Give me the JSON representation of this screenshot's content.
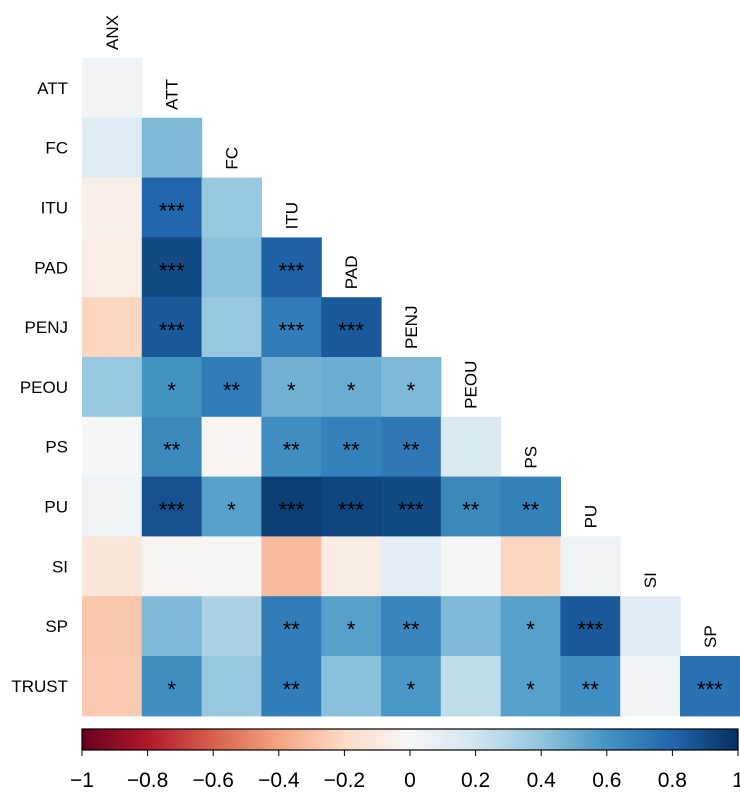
{
  "chart_data": {
    "type": "heatmap",
    "row_labels": [
      "ATT",
      "FC",
      "ITU",
      "PAD",
      "PENJ",
      "PEOU",
      "PS",
      "PU",
      "SI",
      "SP",
      "TRUST"
    ],
    "col_labels": [
      "ANX",
      "ATT",
      "FC",
      "ITU",
      "PAD",
      "PENJ",
      "PEOU",
      "PS",
      "PU",
      "SI",
      "SP"
    ],
    "values": [
      [
        0.03
      ],
      [
        0.12,
        0.45
      ],
      [
        -0.06,
        0.8,
        0.38
      ],
      [
        -0.07,
        0.9,
        0.42,
        0.82
      ],
      [
        -0.22,
        0.85,
        0.38,
        0.7,
        0.85
      ],
      [
        0.38,
        0.6,
        0.7,
        0.48,
        0.5,
        0.45
      ],
      [
        0.01,
        0.65,
        -0.02,
        0.62,
        0.68,
        0.72,
        0.15
      ],
      [
        0.04,
        0.88,
        0.55,
        0.95,
        0.92,
        0.9,
        0.65,
        0.68
      ],
      [
        -0.12,
        -0.03,
        -0.01,
        -0.32,
        -0.08,
        0.1,
        0.01,
        -0.22,
        0.05
      ],
      [
        -0.28,
        0.45,
        0.32,
        0.7,
        0.55,
        0.66,
        0.45,
        0.55,
        0.85,
        0.12
      ],
      [
        -0.26,
        0.62,
        0.38,
        0.7,
        0.42,
        0.58,
        0.25,
        0.55,
        0.62,
        0.03,
        0.75
      ]
    ],
    "significance": [
      [
        ""
      ],
      [
        "",
        ""
      ],
      [
        "",
        "***",
        ""
      ],
      [
        "",
        "***",
        "",
        "***"
      ],
      [
        "",
        "***",
        "",
        "***",
        "***"
      ],
      [
        "",
        "*",
        "**",
        "*",
        "*",
        "*"
      ],
      [
        "",
        "**",
        "",
        "**",
        "**",
        "**",
        ""
      ],
      [
        "",
        "***",
        "*",
        "***",
        "***",
        "***",
        "**",
        "**"
      ],
      [
        "",
        "",
        "",
        "",
        "",
        "",
        "",
        "",
        ""
      ],
      [
        "",
        "",
        "",
        "**",
        "*",
        "**",
        "",
        "*",
        "***",
        ""
      ],
      [
        "",
        "*",
        "",
        "**",
        "",
        "*",
        "",
        "*",
        "**",
        "",
        "***"
      ]
    ],
    "colorbar": {
      "range": [
        -1,
        1
      ],
      "ticks": [
        "−1",
        "−0.8",
        "−0.6",
        "−0.4",
        "−0.2",
        "0",
        "0.2",
        "0.4",
        "0.6",
        "0.8",
        "1"
      ],
      "tick_values": [
        -1,
        -0.8,
        -0.6,
        -0.4,
        -0.2,
        0,
        0.2,
        0.4,
        0.6,
        0.8,
        1
      ],
      "colors": [
        "#67001f",
        "#b2182b",
        "#d6604d",
        "#f4a582",
        "#fddbc7",
        "#f7f7f7",
        "#d1e5f0",
        "#92c5de",
        "#4393c3",
        "#2166ac",
        "#053061"
      ],
      "placement": "bottom"
    },
    "lower_triangle": true
  }
}
